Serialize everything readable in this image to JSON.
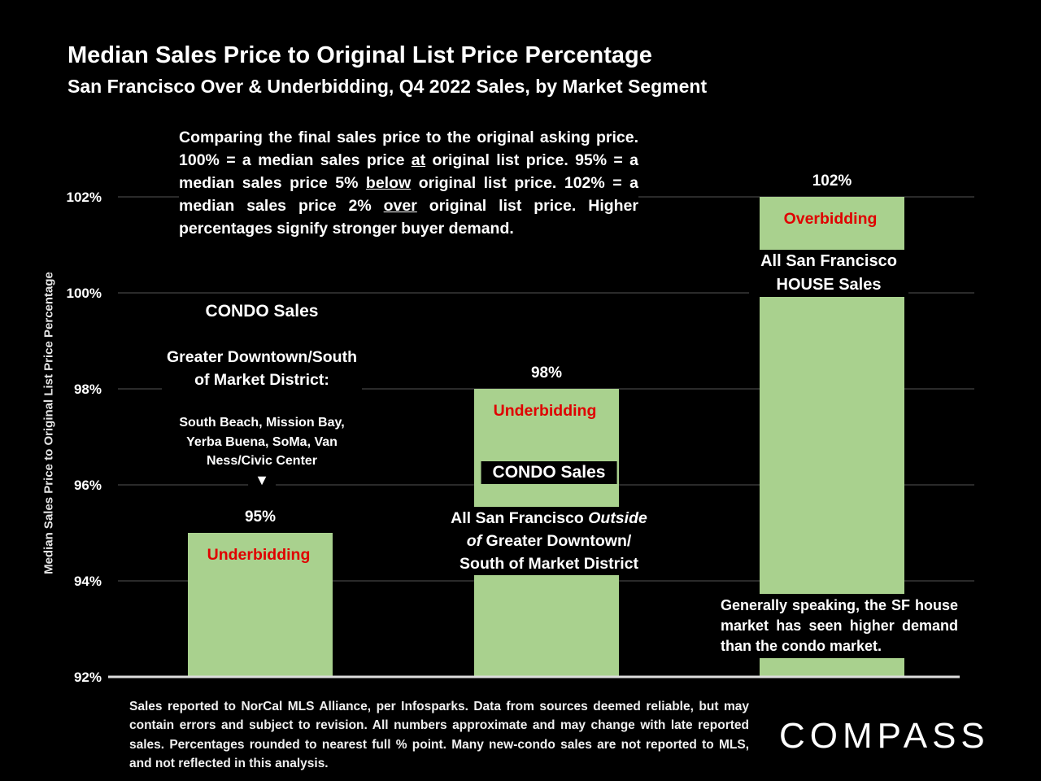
{
  "title": "Median Sales Price to Original List Price Percentage",
  "subtitle": "San Francisco Over & Underbidding, Q4  2022 Sales, by Market Segment",
  "intro": {
    "t1": "Comparing the final sales price to the original asking price. 100% = a median sales price ",
    "u1": "at",
    "t2": " original list price. 95% = a median sales price 5% ",
    "u2": "below",
    "t3": " original list price. 102% = a median sales price 2% ",
    "u3": "over",
    "t4": " original list price. Higher percentages signify stronger buyer demand."
  },
  "annotations": {
    "condo1_heading": "CONDO Sales",
    "condo1_area_line1": "Greater Downtown/South",
    "condo1_area_line2": "of Market District:",
    "condo1_neigh_line1": "South Beach, Mission Bay,",
    "condo1_neigh_line2": "Yerba Buena, SoMa, Van",
    "condo1_neigh_line3": "Ness/Civic Center",
    "arrow": "▼",
    "condo2_heading": "CONDO Sales",
    "condo2_line1_a": "All San Francisco ",
    "condo2_line1_b": "Outside",
    "condo2_line2_a": "of",
    "condo2_line2_b": " Greater Downtown/",
    "condo2_line3": "South of Market District",
    "house_line1": "All San Francisco",
    "house_line2": "HOUSE Sales",
    "house_note": "Generally speaking, the SF house market has seen higher demand than the condo market."
  },
  "chart_data": {
    "type": "bar",
    "categories": [
      "CONDO Sales - Greater Downtown/South of Market District",
      "CONDO Sales - All San Francisco Outside of Greater Downtown/South of Market District",
      "All San Francisco HOUSE Sales"
    ],
    "values": [
      95,
      98,
      102
    ],
    "value_labels": [
      "95%",
      "98%",
      "102%"
    ],
    "bar_labels": [
      "Underbidding",
      "Underbidding",
      "Overbidding"
    ],
    "ylabel": "Median Sales Price to Original List Price Percentage",
    "ylim": [
      92,
      102
    ],
    "yticks": [
      92,
      94,
      96,
      98,
      100,
      102
    ],
    "ytick_labels": [
      "92%",
      "94%",
      "96%",
      "98%",
      "100%",
      "102%"
    ],
    "grid": true,
    "colors": {
      "bar": "#a9d18e",
      "bar_label": "#e00000",
      "grid": "#555555",
      "background": "#000000"
    }
  },
  "footer": "Sales reported to NorCal MLS Alliance, per Infosparks. Data from sources deemed reliable, but may contain errors and subject to revision. All numbers approximate and may change with late reported sales. Percentages rounded to nearest full % point. Many new-condo sales are not reported to MLS, and not reflected in this analysis.",
  "logo": "COMPASS"
}
